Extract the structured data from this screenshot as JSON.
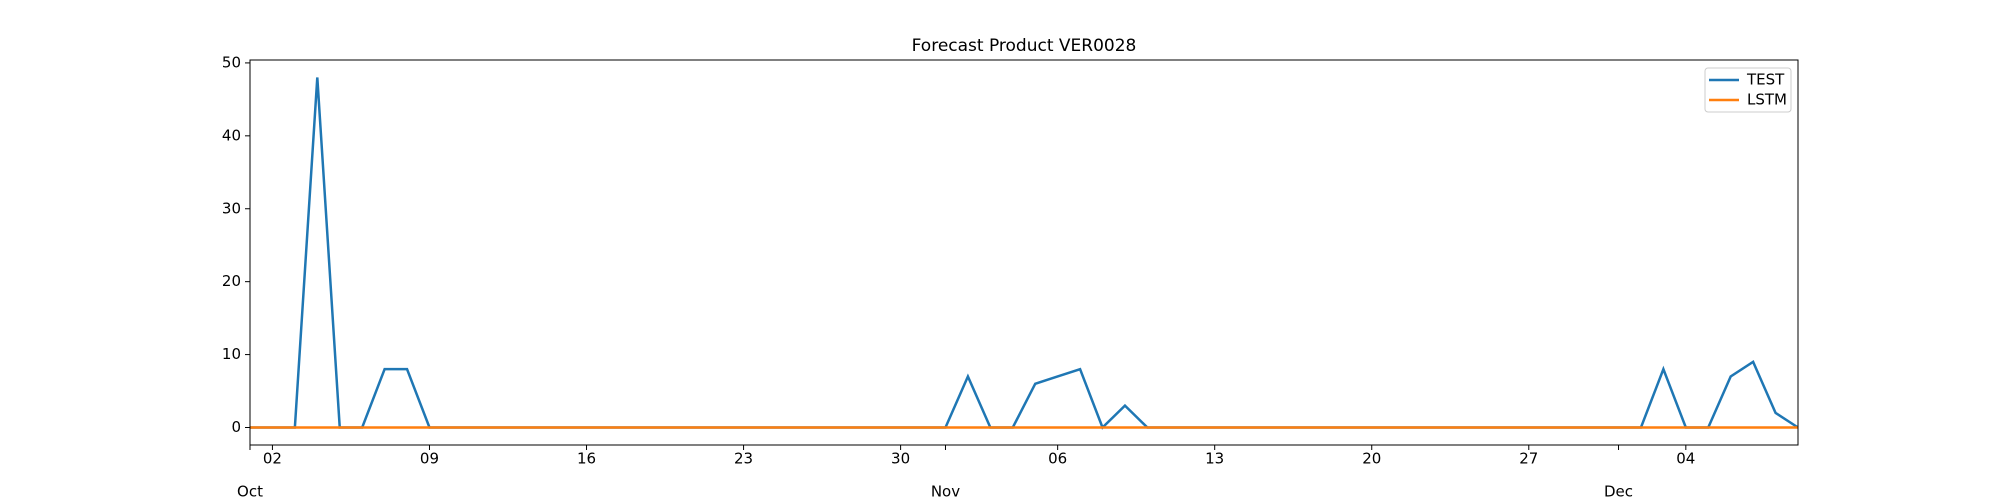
{
  "chart_data": {
    "type": "line",
    "title": "Forecast Product VER0028",
    "categories": [
      "Oct 01",
      "Oct 02",
      "Oct 03",
      "Oct 04",
      "Oct 05",
      "Oct 06",
      "Oct 07",
      "Oct 08",
      "Oct 09",
      "Oct 10",
      "Oct 11",
      "Oct 12",
      "Oct 13",
      "Oct 14",
      "Oct 15",
      "Oct 16",
      "Oct 17",
      "Oct 18",
      "Oct 19",
      "Oct 20",
      "Oct 21",
      "Oct 22",
      "Oct 23",
      "Oct 24",
      "Oct 25",
      "Oct 26",
      "Oct 27",
      "Oct 28",
      "Oct 29",
      "Oct 30",
      "Oct 31",
      "Nov 01",
      "Nov 02",
      "Nov 03",
      "Nov 04",
      "Nov 05",
      "Nov 06",
      "Nov 07",
      "Nov 08",
      "Nov 09",
      "Nov 10",
      "Nov 11",
      "Nov 12",
      "Nov 13",
      "Nov 14",
      "Nov 15",
      "Nov 16",
      "Nov 17",
      "Nov 18",
      "Nov 19",
      "Nov 20",
      "Nov 21",
      "Nov 22",
      "Nov 23",
      "Nov 24",
      "Nov 25",
      "Nov 26",
      "Nov 27",
      "Nov 28",
      "Nov 29",
      "Nov 30",
      "Dec 01",
      "Dec 02",
      "Dec 03",
      "Dec 04",
      "Dec 05",
      "Dec 06",
      "Dec 07",
      "Dec 08",
      "Dec 09"
    ],
    "series": [
      {
        "name": "TEST",
        "color": "#1f77b4",
        "values": [
          0,
          0,
          0,
          48,
          0,
          0,
          8,
          8,
          0,
          0,
          0,
          0,
          0,
          0,
          0,
          0,
          0,
          0,
          0,
          0,
          0,
          0,
          0,
          0,
          0,
          0,
          0,
          0,
          0,
          0,
          0,
          0,
          7,
          0,
          0,
          6,
          7,
          8,
          0,
          3,
          0,
          0,
          0,
          0,
          0,
          0,
          0,
          0,
          0,
          0,
          0,
          0,
          0,
          0,
          0,
          0,
          0,
          0,
          0,
          0,
          0,
          0,
          0,
          8,
          0,
          0,
          7,
          9,
          2,
          0
        ]
      },
      {
        "name": "LSTM",
        "color": "#ff7f0e",
        "values": [
          0,
          0,
          0,
          0,
          0,
          0,
          0,
          0,
          0,
          0,
          0,
          0,
          0,
          0,
          0,
          0,
          0,
          0,
          0,
          0,
          0,
          0,
          0,
          0,
          0,
          0,
          0,
          0,
          0,
          0,
          0,
          0,
          0,
          0,
          0,
          0,
          0,
          0,
          0,
          0,
          0,
          0,
          0,
          0,
          0,
          0,
          0,
          0,
          0,
          0,
          0,
          0,
          0,
          0,
          0,
          0,
          0,
          0,
          0,
          0,
          0,
          0,
          0,
          0,
          0,
          0,
          0,
          0,
          0,
          0
        ]
      }
    ],
    "ylim": [
      -2.4,
      50.4
    ],
    "yticks": [
      0,
      10,
      20,
      30,
      40,
      50
    ],
    "xticks": [
      {
        "value": "Oct 02",
        "label": "02"
      },
      {
        "value": "Oct 09",
        "label": "09"
      },
      {
        "value": "Oct 16",
        "label": "16"
      },
      {
        "value": "Oct 23",
        "label": "23"
      },
      {
        "value": "Oct 30",
        "label": "30"
      },
      {
        "value": "Nov 06",
        "label": "06"
      },
      {
        "value": "Nov 13",
        "label": "13"
      },
      {
        "value": "Nov 20",
        "label": "20"
      },
      {
        "value": "Nov 27",
        "label": "27"
      },
      {
        "value": "Dec 04",
        "label": "04"
      }
    ],
    "x_month_ticks": [
      {
        "value": "Oct 01",
        "label": "Oct"
      },
      {
        "value": "Nov 01",
        "label": "Nov"
      },
      {
        "value": "Dec 01",
        "label": "Dec"
      }
    ],
    "legend": "upper right",
    "grid": false
  }
}
